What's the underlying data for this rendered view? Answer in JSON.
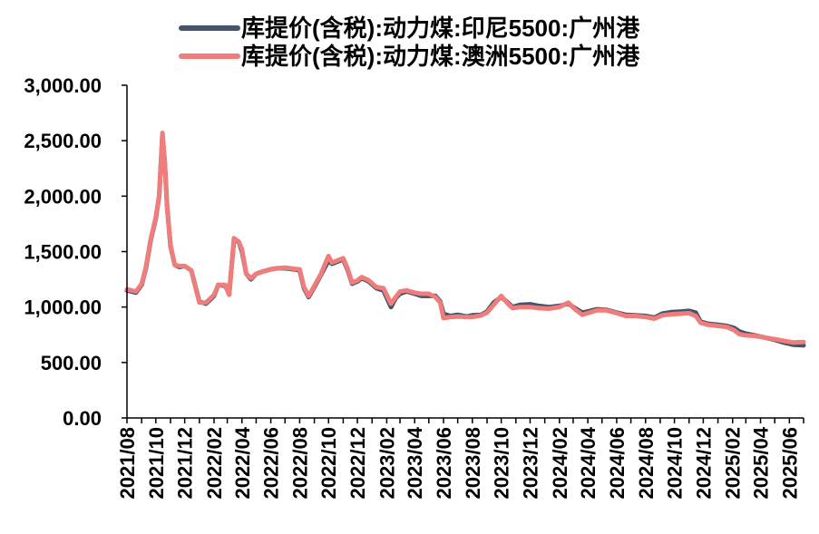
{
  "chart_data": {
    "type": "line",
    "title": "",
    "xlabel": "",
    "ylabel": "",
    "x_range": [
      "2021-08-01",
      "2025-07-01"
    ],
    "ylim": [
      0,
      3000
    ],
    "yticks": [
      0,
      500,
      1000,
      1500,
      2000,
      2500,
      3000
    ],
    "ytick_labels": [
      "0.00",
      "500.00",
      "1,000.00",
      "1,500.00",
      "2,000.00",
      "2,500.00",
      "3,000.00"
    ],
    "xtick_labels": [
      "2021/08",
      "2021/10",
      "2021/12",
      "2022/02",
      "2022/04",
      "2022/06",
      "2022/08",
      "2022/10",
      "2022/12",
      "2023/02",
      "2023/04",
      "2023/06",
      "2023/08",
      "2023/10",
      "2023/12",
      "2024/02",
      "2024/04",
      "2024/06",
      "2024/08",
      "2024/10",
      "2024/12",
      "2025/02",
      "2025/04",
      "2025/06"
    ],
    "grid": false,
    "legend_position": "top",
    "series": [
      {
        "name": "库提价(含税):动力煤:印尼5500:广州港",
        "color": "#44546A",
        "points": [
          [
            "2021-08-01",
            1150
          ],
          [
            "2021-08-10",
            1140
          ],
          [
            "2021-08-20",
            1130
          ],
          [
            "2021-09-01",
            1200
          ],
          [
            "2021-09-10",
            1350
          ],
          [
            "2021-09-20",
            1600
          ],
          [
            "2021-10-01",
            1800
          ],
          [
            "2021-10-08",
            2000
          ],
          [
            "2021-10-15",
            2550
          ],
          [
            "2021-10-20",
            2300
          ],
          [
            "2021-10-25",
            1900
          ],
          [
            "2021-11-01",
            1550
          ],
          [
            "2021-11-10",
            1380
          ],
          [
            "2021-11-20",
            1360
          ],
          [
            "2021-12-01",
            1370
          ],
          [
            "2021-12-15",
            1330
          ],
          [
            "2022-01-01",
            1050
          ],
          [
            "2022-01-15",
            1030
          ],
          [
            "2022-02-01",
            1100
          ],
          [
            "2022-02-10",
            1200
          ],
          [
            "2022-02-25",
            1190
          ],
          [
            "2022-03-05",
            1120
          ],
          [
            "2022-03-15",
            1600
          ],
          [
            "2022-03-25",
            1590
          ],
          [
            "2022-04-01",
            1500
          ],
          [
            "2022-04-10",
            1300
          ],
          [
            "2022-04-20",
            1250
          ],
          [
            "2022-05-01",
            1300
          ],
          [
            "2022-05-15",
            1320
          ],
          [
            "2022-06-01",
            1340
          ],
          [
            "2022-06-15",
            1350
          ],
          [
            "2022-07-01",
            1350
          ],
          [
            "2022-07-20",
            1340
          ],
          [
            "2022-08-01",
            1330
          ],
          [
            "2022-08-10",
            1170
          ],
          [
            "2022-08-20",
            1090
          ],
          [
            "2022-09-01",
            1180
          ],
          [
            "2022-09-15",
            1290
          ],
          [
            "2022-10-01",
            1420
          ],
          [
            "2022-10-08",
            1390
          ],
          [
            "2022-10-20",
            1410
          ],
          [
            "2022-11-01",
            1430
          ],
          [
            "2022-11-10",
            1340
          ],
          [
            "2022-11-20",
            1210
          ],
          [
            "2022-12-01",
            1230
          ],
          [
            "2022-12-10",
            1260
          ],
          [
            "2022-12-25",
            1230
          ],
          [
            "2023-01-10",
            1170
          ],
          [
            "2023-01-25",
            1150
          ],
          [
            "2023-02-10",
            1000
          ],
          [
            "2023-02-20",
            1080
          ],
          [
            "2023-03-01",
            1120
          ],
          [
            "2023-03-15",
            1140
          ],
          [
            "2023-04-01",
            1120
          ],
          [
            "2023-04-15",
            1100
          ],
          [
            "2023-05-01",
            1100
          ],
          [
            "2023-05-15",
            1100
          ],
          [
            "2023-05-25",
            1050
          ],
          [
            "2023-06-01",
            940
          ],
          [
            "2023-06-15",
            920
          ],
          [
            "2023-07-01",
            930
          ],
          [
            "2023-07-20",
            915
          ],
          [
            "2023-08-01",
            925
          ],
          [
            "2023-08-20",
            930
          ],
          [
            "2023-09-01",
            960
          ],
          [
            "2023-09-15",
            1040
          ],
          [
            "2023-10-01",
            1090
          ],
          [
            "2023-10-15",
            1040
          ],
          [
            "2023-10-25",
            1000
          ],
          [
            "2023-11-10",
            1020
          ],
          [
            "2023-12-01",
            1025
          ],
          [
            "2023-12-20",
            1010
          ],
          [
            "2024-01-10",
            1000
          ],
          [
            "2024-02-01",
            1010
          ],
          [
            "2024-02-20",
            1030
          ],
          [
            "2024-03-05",
            990
          ],
          [
            "2024-03-20",
            950
          ],
          [
            "2024-04-01",
            960
          ],
          [
            "2024-04-20",
            980
          ],
          [
            "2024-05-10",
            975
          ],
          [
            "2024-06-01",
            950
          ],
          [
            "2024-06-20",
            930
          ],
          [
            "2024-07-10",
            925
          ],
          [
            "2024-08-01",
            920
          ],
          [
            "2024-08-20",
            905
          ],
          [
            "2024-09-05",
            940
          ],
          [
            "2024-09-25",
            955
          ],
          [
            "2024-10-15",
            960
          ],
          [
            "2024-11-01",
            965
          ],
          [
            "2024-11-15",
            950
          ],
          [
            "2024-11-25",
            870
          ],
          [
            "2024-12-10",
            850
          ],
          [
            "2025-01-01",
            840
          ],
          [
            "2025-01-20",
            830
          ],
          [
            "2025-02-05",
            810
          ],
          [
            "2025-02-15",
            780
          ],
          [
            "2025-03-01",
            760
          ],
          [
            "2025-03-20",
            745
          ],
          [
            "2025-04-10",
            725
          ],
          [
            "2025-05-01",
            705
          ],
          [
            "2025-05-20",
            680
          ],
          [
            "2025-06-10",
            660
          ],
          [
            "2025-07-01",
            655
          ]
        ]
      },
      {
        "name": "库提价(含税):动力煤:澳洲5500:广州港",
        "color": "#F07C7C",
        "points": [
          [
            "2021-08-01",
            1160
          ],
          [
            "2021-08-10",
            1150
          ],
          [
            "2021-08-20",
            1140
          ],
          [
            "2021-09-01",
            1210
          ],
          [
            "2021-09-10",
            1360
          ],
          [
            "2021-09-20",
            1610
          ],
          [
            "2021-10-01",
            1810
          ],
          [
            "2021-10-08",
            2000
          ],
          [
            "2021-10-15",
            2570
          ],
          [
            "2021-10-20",
            2300
          ],
          [
            "2021-10-25",
            1900
          ],
          [
            "2021-11-01",
            1560
          ],
          [
            "2021-11-10",
            1380
          ],
          [
            "2021-11-20",
            1370
          ],
          [
            "2021-12-01",
            1370
          ],
          [
            "2021-12-15",
            1330
          ],
          [
            "2022-01-01",
            1040
          ],
          [
            "2022-01-15",
            1040
          ],
          [
            "2022-02-01",
            1110
          ],
          [
            "2022-02-10",
            1200
          ],
          [
            "2022-02-25",
            1200
          ],
          [
            "2022-03-05",
            1110
          ],
          [
            "2022-03-15",
            1620
          ],
          [
            "2022-03-25",
            1590
          ],
          [
            "2022-04-01",
            1520
          ],
          [
            "2022-04-10",
            1300
          ],
          [
            "2022-04-20",
            1260
          ],
          [
            "2022-05-01",
            1300
          ],
          [
            "2022-05-15",
            1320
          ],
          [
            "2022-06-01",
            1340
          ],
          [
            "2022-06-15",
            1350
          ],
          [
            "2022-07-01",
            1355
          ],
          [
            "2022-07-20",
            1345
          ],
          [
            "2022-08-01",
            1340
          ],
          [
            "2022-08-10",
            1180
          ],
          [
            "2022-08-20",
            1100
          ],
          [
            "2022-09-01",
            1190
          ],
          [
            "2022-09-15",
            1300
          ],
          [
            "2022-10-01",
            1460
          ],
          [
            "2022-10-08",
            1400
          ],
          [
            "2022-10-20",
            1420
          ],
          [
            "2022-11-01",
            1440
          ],
          [
            "2022-11-10",
            1350
          ],
          [
            "2022-11-20",
            1220
          ],
          [
            "2022-12-01",
            1240
          ],
          [
            "2022-12-10",
            1270
          ],
          [
            "2022-12-25",
            1240
          ],
          [
            "2023-01-10",
            1180
          ],
          [
            "2023-01-25",
            1170
          ],
          [
            "2023-02-10",
            1030
          ],
          [
            "2023-02-20",
            1090
          ],
          [
            "2023-03-01",
            1140
          ],
          [
            "2023-03-15",
            1150
          ],
          [
            "2023-04-01",
            1130
          ],
          [
            "2023-04-15",
            1120
          ],
          [
            "2023-05-01",
            1120
          ],
          [
            "2023-05-15",
            1090
          ],
          [
            "2023-05-25",
            1040
          ],
          [
            "2023-06-01",
            900
          ],
          [
            "2023-06-15",
            910
          ],
          [
            "2023-07-01",
            915
          ],
          [
            "2023-07-20",
            910
          ],
          [
            "2023-08-01",
            910
          ],
          [
            "2023-08-20",
            925
          ],
          [
            "2023-09-01",
            950
          ],
          [
            "2023-09-15",
            1020
          ],
          [
            "2023-10-01",
            1100
          ],
          [
            "2023-10-15",
            1030
          ],
          [
            "2023-10-25",
            990
          ],
          [
            "2023-11-10",
            1000
          ],
          [
            "2023-12-01",
            1000
          ],
          [
            "2023-12-20",
            990
          ],
          [
            "2024-01-10",
            985
          ],
          [
            "2024-02-01",
            1000
          ],
          [
            "2024-02-20",
            1040
          ],
          [
            "2024-03-05",
            980
          ],
          [
            "2024-03-20",
            930
          ],
          [
            "2024-04-01",
            945
          ],
          [
            "2024-04-20",
            970
          ],
          [
            "2024-05-10",
            970
          ],
          [
            "2024-06-01",
            945
          ],
          [
            "2024-06-20",
            920
          ],
          [
            "2024-07-10",
            920
          ],
          [
            "2024-08-01",
            910
          ],
          [
            "2024-08-20",
            895
          ],
          [
            "2024-09-05",
            925
          ],
          [
            "2024-09-25",
            935
          ],
          [
            "2024-10-15",
            940
          ],
          [
            "2024-11-01",
            945
          ],
          [
            "2024-11-15",
            920
          ],
          [
            "2024-11-25",
            860
          ],
          [
            "2024-12-10",
            840
          ],
          [
            "2025-01-01",
            830
          ],
          [
            "2025-01-20",
            820
          ],
          [
            "2025-02-05",
            790
          ],
          [
            "2025-02-15",
            755
          ],
          [
            "2025-03-01",
            745
          ],
          [
            "2025-03-20",
            740
          ],
          [
            "2025-04-10",
            725
          ],
          [
            "2025-05-01",
            710
          ],
          [
            "2025-05-20",
            695
          ],
          [
            "2025-06-10",
            680
          ],
          [
            "2025-07-01",
            685
          ]
        ]
      }
    ]
  }
}
